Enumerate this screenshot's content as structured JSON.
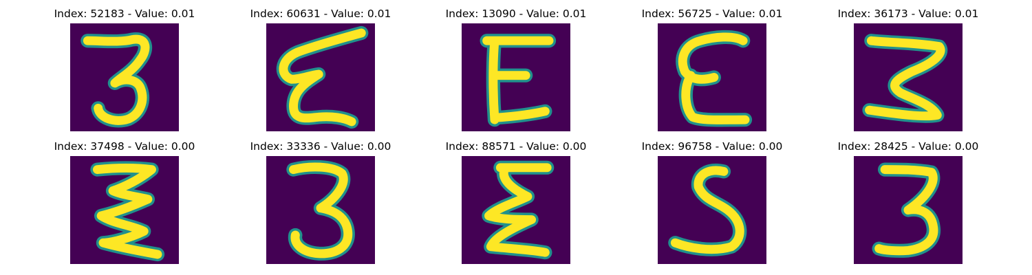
{
  "colors": {
    "background": "#440154",
    "stroke": "#fde725",
    "edge": "#21918c"
  },
  "panels": [
    {
      "title": "Index: 52183 - Value: 0.01",
      "glyph": "3"
    },
    {
      "title": "Index: 60631 - Value: 0.01",
      "glyph": "Σ"
    },
    {
      "title": "Index: 13090 - Value: 0.01",
      "glyph": "E"
    },
    {
      "title": "Index: 56725 - Value: 0.01",
      "glyph": "ε"
    },
    {
      "title": "Index: 36173 - Value: 0.01",
      "glyph": "3"
    },
    {
      "title": "Index: 37498 - Value: 0.00",
      "glyph": "Ƹ"
    },
    {
      "title": "Index: 33336 - Value: 0.00",
      "glyph": "3"
    },
    {
      "title": "Index: 88571 - Value: 0.00",
      "glyph": "Σ"
    },
    {
      "title": "Index: 96758 - Value: 0.00",
      "glyph": "5"
    },
    {
      "title": "Index: 28425 - Value: 0.00",
      "glyph": "3"
    }
  ]
}
